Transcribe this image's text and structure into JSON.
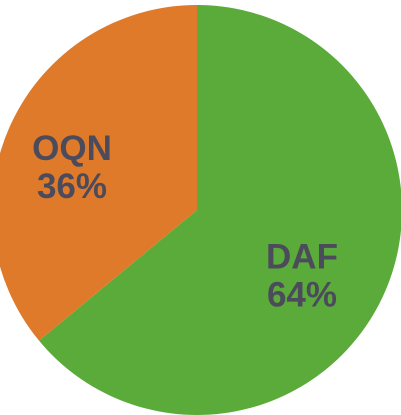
{
  "chart_data": {
    "type": "pie",
    "categories": [
      "DAF",
      "OQN"
    ],
    "values": [
      64,
      36
    ],
    "value_labels": [
      "64%",
      "36%"
    ],
    "colors": [
      "#5aab3a",
      "#e07a2b"
    ]
  }
}
